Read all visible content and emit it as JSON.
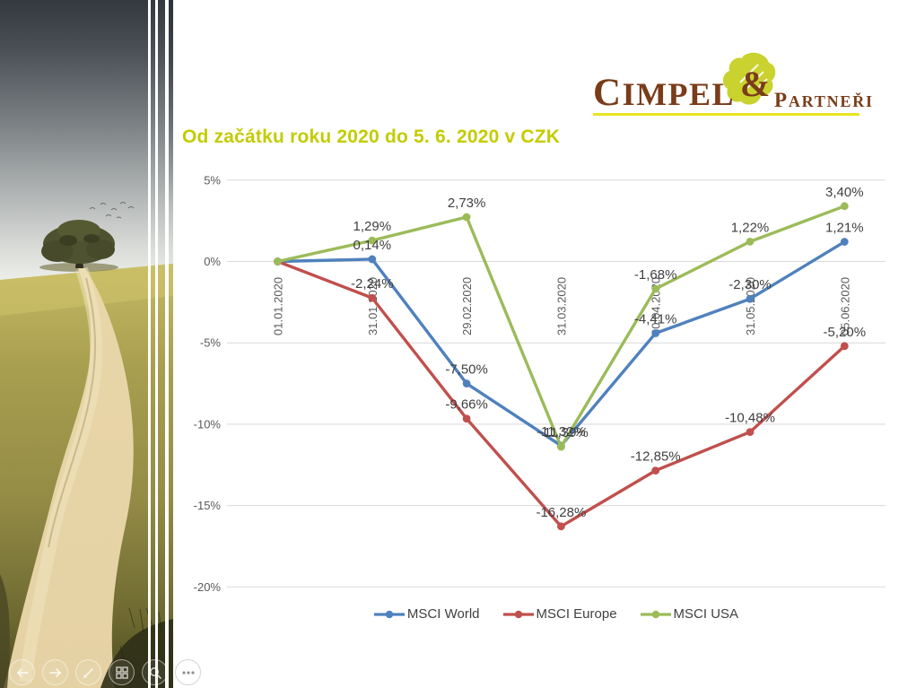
{
  "slide": {
    "title": "Od začátku roku 2020 do 5. 6. 2020 v CZK",
    "title_color": "#C3CC00"
  },
  "logo": {
    "primary": "CIMPEL",
    "ampersand": "&",
    "secondary": "PARTNEŘI",
    "text_color": "#7A3C19",
    "leaf_color": "#C9D22E",
    "underline_color": "#E9E41F"
  },
  "slideshow_controls": {
    "buttons": [
      "previous-slide",
      "next-slide",
      "pen-tools",
      "see-all-slides",
      "zoom-slide",
      "more-options"
    ]
  },
  "chart_data": {
    "type": "line",
    "title": "",
    "categories": [
      "01.01.2020",
      "31.01.2020",
      "29.02.2020",
      "31.03.2020",
      "30.04.2020",
      "31.05.2020",
      "05.06.2020"
    ],
    "series": [
      {
        "name": "MSCI World",
        "color": "#4F81BD",
        "values": [
          0,
          0.14,
          -7.5,
          -11.32,
          -4.41,
          -2.3,
          1.21
        ],
        "labels": [
          "",
          "0,14%",
          "-7,50%",
          "-11,32%",
          "-4,41%",
          "-2,30%",
          "1,21%"
        ]
      },
      {
        "name": "MSCI Europe",
        "color": "#C0504D",
        "values": [
          0,
          -2.24,
          -9.66,
          -16.28,
          -12.85,
          -10.48,
          -5.2
        ],
        "labels": [
          "",
          "-2,24%",
          "-9,66%",
          "-16,28%",
          "-12,85%",
          "-10,48%",
          "-5,20%"
        ]
      },
      {
        "name": "MSCI USA",
        "color": "#9BBB59",
        "values": [
          0,
          1.29,
          2.73,
          -11.39,
          -1.68,
          1.22,
          3.4
        ],
        "labels": [
          "",
          "1,29%",
          "2,73%",
          "-11,39%",
          "-1,68%",
          "1,22%",
          "3,40%"
        ]
      }
    ],
    "y_axis": {
      "min": -20,
      "max": 5,
      "tick_step": 5,
      "ticks": [
        {
          "value": 5,
          "label": "5%"
        },
        {
          "value": 0,
          "label": "0%"
        },
        {
          "value": -5,
          "label": "-5%"
        },
        {
          "value": -10,
          "label": "-10%"
        },
        {
          "value": -15,
          "label": "-15%"
        },
        {
          "value": -20,
          "label": "-20%"
        }
      ]
    },
    "x_axis": {
      "label_rotation": -90
    },
    "grid": true,
    "legend_position": "bottom",
    "axis_text_color": "#595959",
    "data_label_color": "#404040",
    "gridline_color": "#D9D9D9"
  }
}
